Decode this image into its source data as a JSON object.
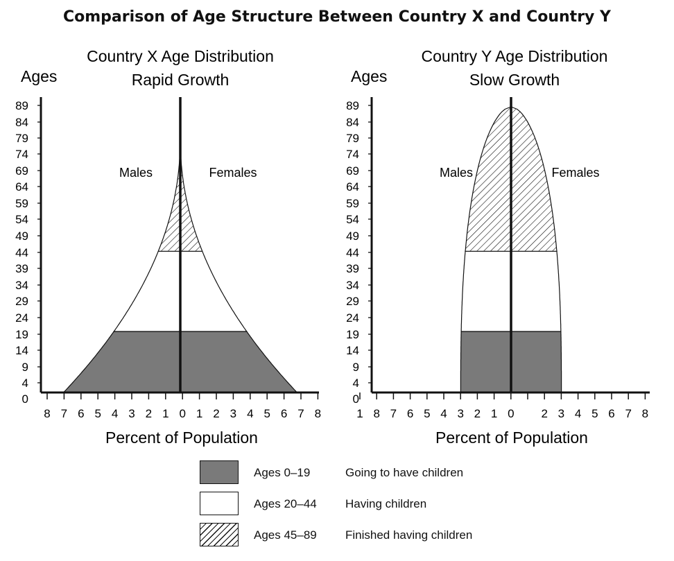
{
  "title": "Comparison of Age Structure Between Country X  and Country Y",
  "chart_data": [
    {
      "type": "area",
      "title": "Country X Age Distribution",
      "subtitle": "Rapid Growth",
      "ylabel": "Ages",
      "xlabel": "Percent of Population",
      "left_label": "Males",
      "right_label": "Females",
      "y_ticks": [
        "89",
        "84",
        "79",
        "74",
        "69",
        "64",
        "59",
        "54",
        "49",
        "44",
        "39",
        "34",
        "29",
        "24",
        "19",
        "14",
        "9",
        "4",
        "0"
      ],
      "x_ticks": [
        "8",
        "7",
        "6",
        "5",
        "4",
        "3",
        "2",
        "1",
        "0",
        "1",
        "2",
        "3",
        "4",
        "5",
        "6",
        "7",
        "8"
      ],
      "xlim": [
        -8,
        8
      ],
      "ylim": [
        0,
        89
      ],
      "profile": [
        {
          "age": 0,
          "percent": 6.9
        },
        {
          "age": 19,
          "percent": 4.0
        },
        {
          "age": 44,
          "percent": 1.8
        },
        {
          "age": 79,
          "percent": 0
        }
      ]
    },
    {
      "type": "area",
      "title": "Country Y Age Distribution",
      "subtitle": "Slow Growth",
      "ylabel": "Ages",
      "xlabel": "Percent of Population",
      "left_label": "Males",
      "right_label": "Females",
      "y_ticks": [
        "89",
        "84",
        "79",
        "74",
        "69",
        "64",
        "59",
        "54",
        "49",
        "44",
        "39",
        "34",
        "29",
        "24",
        "19",
        "14",
        "9",
        "4",
        "0"
      ],
      "x_ticks": [
        "1",
        "8",
        "7",
        "6",
        "5",
        "4",
        "3",
        "2",
        "1",
        "0",
        "",
        "2",
        "3",
        "4",
        "5",
        "6",
        "7",
        "8"
      ],
      "xlim": [
        -9,
        8
      ],
      "ylim": [
        0,
        89
      ],
      "profile": [
        {
          "age": 0,
          "percent": 3.0
        },
        {
          "age": 19,
          "percent": 2.7
        },
        {
          "age": 44,
          "percent": 2.1
        },
        {
          "age": 89,
          "percent": 0
        }
      ]
    }
  ],
  "legend": [
    {
      "range": "Ages 0–19",
      "description": "Going to have children",
      "fill": "#7a7a7a"
    },
    {
      "range": "Ages 20–44",
      "description": "Having children",
      "fill": "#ffffff"
    },
    {
      "range": "Ages 45–89",
      "description": "Finished having children",
      "fill": "hatch"
    }
  ]
}
